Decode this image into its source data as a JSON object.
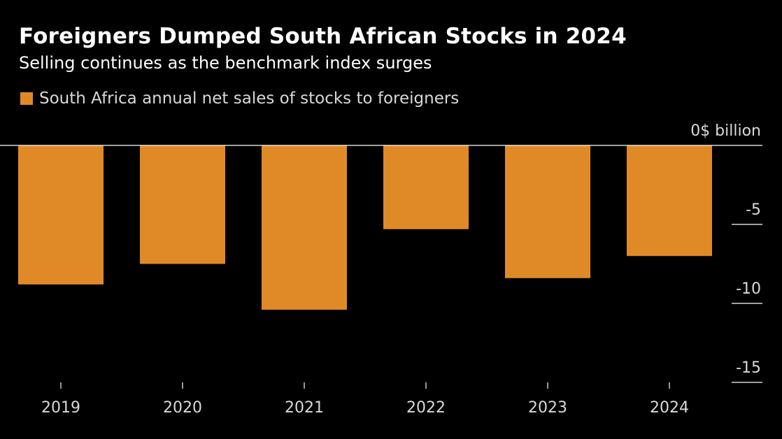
{
  "header": {
    "title": "Foreigners Dumped South African Stocks in 2024",
    "subtitle": "Selling continues as the benchmark index surges"
  },
  "legend": {
    "label": "South Africa annual net sales of stocks to foreigners"
  },
  "colors": {
    "bar": "#E08A27",
    "background": "#000000",
    "zero_line": "#ffffff",
    "tick_line": "#ffffff",
    "text": "#d9d9d9"
  },
  "chart_data": {
    "type": "bar",
    "title": "Foreigners Dumped South African Stocks in 2024",
    "subtitle": "Selling continues as the benchmark index surges",
    "categories": [
      "2019",
      "2020",
      "2021",
      "2022",
      "2023",
      "2024"
    ],
    "series": [
      {
        "name": "South Africa annual net sales of stocks to foreigners",
        "values": [
          -8.8,
          -7.5,
          -10.4,
          -5.3,
          -8.4,
          -7.0
        ]
      }
    ],
    "ylabel": "$ billion",
    "ylim": [
      -15,
      0
    ],
    "yticks": [
      0,
      -5,
      -10,
      -15
    ],
    "ytick_labels": [
      "0$ billion",
      "-5",
      "-10",
      "-15"
    ],
    "y_axis_side": "right",
    "legend_position": "top-left",
    "grid": false
  }
}
